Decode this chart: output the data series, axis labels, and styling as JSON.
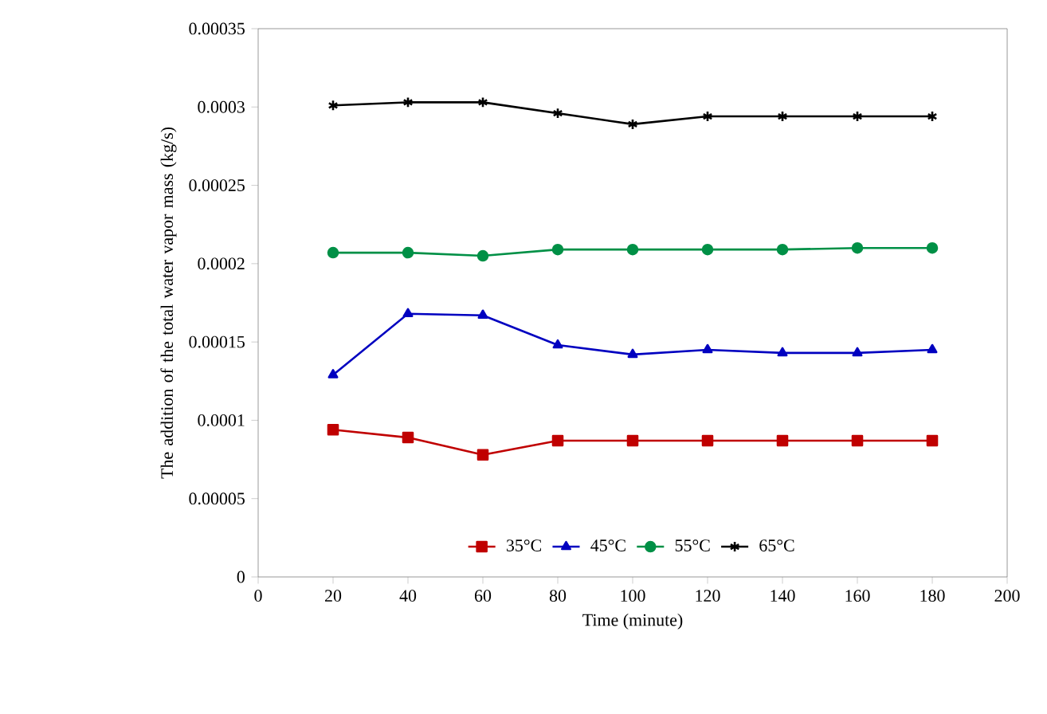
{
  "chart_data": {
    "type": "line",
    "xlabel": "Time (minute)",
    "ylabel": "The addition of the total water vapor  mass (kg/s)",
    "x": [
      20,
      40,
      60,
      80,
      100,
      120,
      140,
      160,
      180
    ],
    "xlim": [
      0,
      200
    ],
    "xticks": [
      0,
      20,
      40,
      60,
      80,
      100,
      120,
      140,
      160,
      180,
      200
    ],
    "ylim": [
      0,
      0.00035
    ],
    "yticks": [
      {
        "value": 0,
        "label": "0"
      },
      {
        "value": 5e-05,
        "label": "0.00005"
      },
      {
        "value": 0.0001,
        "label": "0.0001"
      },
      {
        "value": 0.00015,
        "label": "0.00015"
      },
      {
        "value": 0.0002,
        "label": "0.0002"
      },
      {
        "value": 0.00025,
        "label": "0.00025"
      },
      {
        "value": 0.0003,
        "label": "0.0003"
      },
      {
        "value": 0.00035,
        "label": "0.00035"
      }
    ],
    "grid": false,
    "legend": "bottom",
    "line_style": "solid",
    "series": [
      {
        "name": "35°C",
        "color": "#c00000",
        "marker": "square",
        "values": [
          9.4e-05,
          8.9e-05,
          7.8e-05,
          8.7e-05,
          8.7e-05,
          8.7e-05,
          8.7e-05,
          8.7e-05,
          8.7e-05
        ]
      },
      {
        "name": "45°C",
        "color": "#0000c0",
        "marker": "triangle",
        "values": [
          0.000129,
          0.000168,
          0.000167,
          0.000148,
          0.000142,
          0.000145,
          0.000143,
          0.000143,
          0.000145
        ]
      },
      {
        "name": "55°C",
        "color": "#009046",
        "marker": "circle",
        "values": [
          0.000207,
          0.000207,
          0.000205,
          0.000209,
          0.000209,
          0.000209,
          0.000209,
          0.00021,
          0.00021
        ]
      },
      {
        "name": "65°C",
        "color": "#000000",
        "marker": "cross",
        "values": [
          0.000301,
          0.000303,
          0.000303,
          0.000296,
          0.000289,
          0.000294,
          0.000294,
          0.000294,
          0.000294
        ]
      }
    ]
  }
}
